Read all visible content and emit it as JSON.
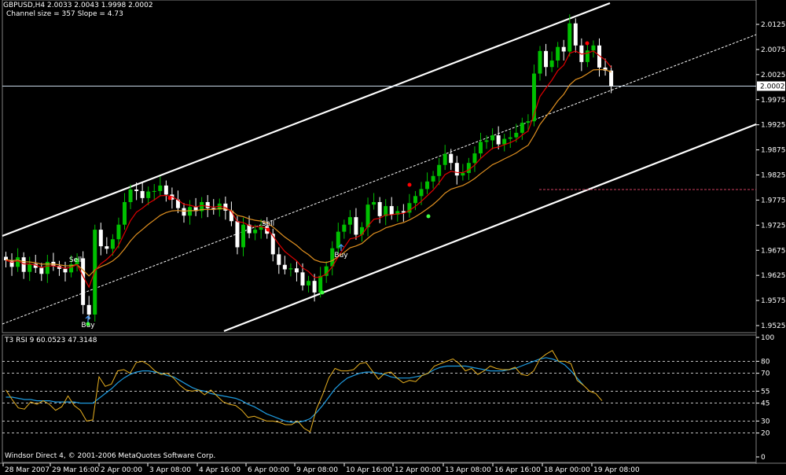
{
  "header": {
    "symbol_line": "GBPUSD,H4  2.0033 2.0043 1.9998 2.0002",
    "channel_line": "Channel size = 357 Slope = 4.73"
  },
  "rsi_header": "T3 RSI 9 60.0523 47.3148",
  "copyright": "Windsor Direct 4, © 2001-2006 MetaQuotes Software Corp.",
  "colors": {
    "background": "#000000",
    "bull_candle": "#00c000",
    "bear_candle": "#ffffff",
    "fast_ma": "#e00000",
    "slow_ma": "#e09020",
    "channel": "#ffffff",
    "rsi_fast": "#e8b020",
    "rsi_slow": "#1e9be0",
    "current_price_line": "#c8d8e8",
    "signal_dot_red": "#ff0000",
    "signal_dot_green": "#40ff40"
  },
  "chart_data": [
    {
      "type": "candlestick",
      "symbol": "GBPUSD",
      "timeframe": "H4",
      "current_price": "2.0002",
      "ylim": [
        1.951,
        2.015
      ],
      "y_ticks": [
        "2.0125",
        "2.0075",
        "2.0025",
        "1.9975",
        "1.9925",
        "1.9875",
        "1.9825",
        "1.9775",
        "1.9725",
        "1.9675",
        "1.9625",
        "1.9575",
        "1.9525"
      ],
      "x_ticks": [
        "28 Mar 2007",
        "29 Mar 16:00",
        "2 Apr 00:00",
        "3 Apr 08:00",
        "4 Apr 16:00",
        "6 Apr 00:00",
        "9 Apr 08:00",
        "10 Apr 16:00",
        "12 Apr 00:00",
        "13 Apr 08:00",
        "16 Apr 16:00",
        "18 Apr 00:00",
        "19 Apr 08:00"
      ],
      "closes": [
        1.9655,
        1.9642,
        1.9661,
        1.9632,
        1.9648,
        1.964,
        1.9628,
        1.9652,
        1.9644,
        1.9638,
        1.9631,
        1.9647,
        1.9659,
        1.9566,
        1.9547,
        1.9716,
        1.9683,
        1.9678,
        1.9697,
        1.9726,
        1.9771,
        1.9796,
        1.9793,
        1.9779,
        1.9792,
        1.9793,
        1.9804,
        1.9786,
        1.9776,
        1.9759,
        1.9744,
        1.9761,
        1.9753,
        1.9771,
        1.9759,
        1.9756,
        1.9768,
        1.9754,
        1.9733,
        1.9681,
        1.9726,
        1.9709,
        1.9716,
        1.9723,
        1.9708,
        1.9667,
        1.9646,
        1.9637,
        1.9639,
        1.9631,
        1.9605,
        1.9614,
        1.9591,
        1.9624,
        1.9643,
        1.9679,
        1.9712,
        1.9726,
        1.9741,
        1.9706,
        1.9721,
        1.9766,
        1.9771,
        1.9743,
        1.9763,
        1.9746,
        1.9753,
        1.975,
        1.9769,
        1.9783,
        1.9797,
        1.9812,
        1.9823,
        1.9845,
        1.9867,
        1.9849,
        1.9824,
        1.9829,
        1.9849,
        1.9868,
        1.9891,
        1.9894,
        1.9904,
        1.9886,
        1.9897,
        1.99,
        1.9909,
        1.9929,
        1.9932,
        2.0027,
        2.0072,
        2.004,
        2.0053,
        2.008,
        2.0071,
        2.0127,
        2.0083,
        2.005,
        2.0073,
        2.0083,
        2.0039,
        2.0033,
        2.0002
      ]
    },
    {
      "type": "line",
      "title": "T3 RSI 9 60.0523 47.3148",
      "ylim": [
        0,
        100
      ],
      "y_ticks": [
        "100",
        "80",
        "70",
        "55",
        "45",
        "30",
        "20",
        "0"
      ],
      "levels": [
        80,
        70,
        55,
        45,
        30,
        20
      ],
      "series": [
        {
          "values": [
            56,
            48,
            41,
            40,
            46,
            44,
            47,
            44,
            39,
            42,
            51,
            43,
            39,
            30,
            31,
            67,
            59,
            61,
            72,
            73,
            70,
            79,
            80,
            77,
            72,
            69,
            70,
            66,
            60,
            56,
            55,
            56,
            52,
            56,
            51,
            46,
            44,
            43,
            39,
            33,
            34,
            32,
            30,
            30,
            29,
            27,
            27,
            30,
            24,
            21,
            40,
            52,
            66,
            74,
            72,
            72,
            73,
            78,
            79,
            72,
            65,
            70,
            71,
            66,
            62,
            64,
            63,
            68,
            70,
            76,
            78,
            80,
            82,
            78,
            72,
            74,
            69,
            72,
            76,
            74,
            73,
            73,
            75,
            69,
            68,
            72,
            82,
            86,
            89,
            80,
            80,
            78,
            64,
            60,
            55,
            53,
            47
          ]
        },
        {
          "values": [
            50,
            50,
            49,
            48,
            48,
            47,
            47,
            47,
            46,
            46,
            46,
            46,
            45,
            45,
            45,
            49,
            53,
            57,
            62,
            66,
            69,
            71,
            72,
            72,
            71,
            70,
            68,
            67,
            64,
            61,
            58,
            56,
            55,
            53,
            52,
            51,
            50,
            49,
            47,
            44,
            42,
            39,
            36,
            34,
            32,
            30,
            29,
            29,
            30,
            32,
            37,
            43,
            50,
            57,
            62,
            66,
            68,
            70,
            71,
            71,
            70,
            69,
            67,
            66,
            66,
            66,
            67,
            68,
            70,
            73,
            75,
            76,
            76,
            76,
            76,
            75,
            74,
            73,
            72,
            72,
            72,
            73,
            74,
            76,
            78,
            80,
            82,
            83,
            82,
            80,
            77,
            72,
            66,
            60
          ]
        }
      ]
    }
  ],
  "annotations": {
    "sell_1": "Sell",
    "buy_1": "Buy",
    "sell_2": "Sell",
    "buy_2": "Buy"
  }
}
